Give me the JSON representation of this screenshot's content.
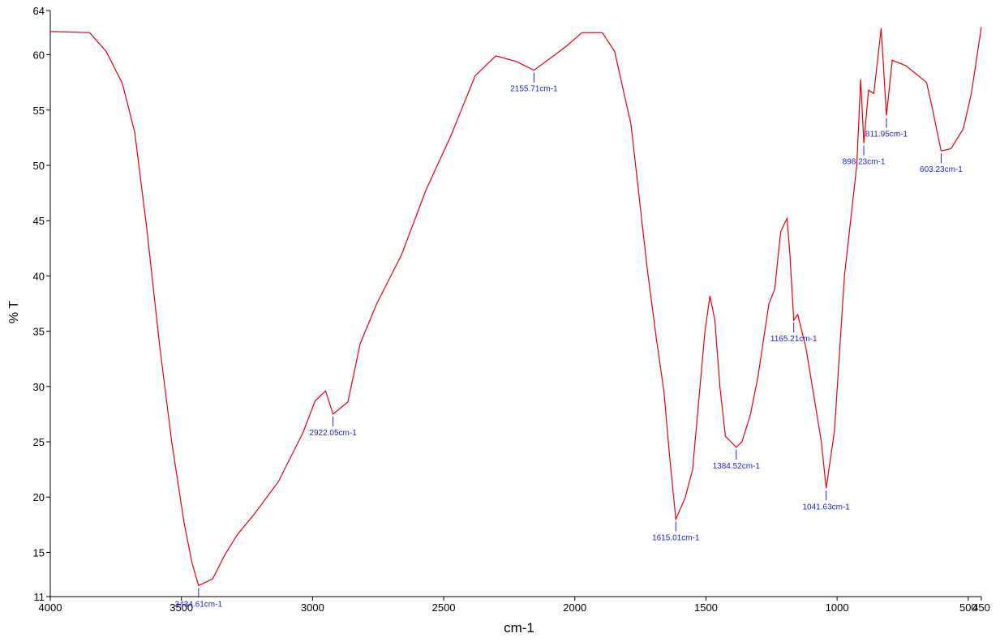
{
  "chart_data": {
    "type": "line",
    "xlabel": "cm-1",
    "ylabel": "% T",
    "x": [
      4000,
      3850,
      3787,
      3725,
      3678,
      3631,
      3584,
      3537,
      3490,
      3459,
      3434.61,
      3381,
      3334,
      3287,
      3224,
      3130,
      3037,
      2990,
      2950,
      2922.05,
      2865,
      2818,
      2755,
      2661,
      2567,
      2474,
      2380,
      2301,
      2223,
      2155.71,
      2036,
      1973,
      1895,
      1848,
      1786,
      1723,
      1690,
      1660,
      1640,
      1615.01,
      1580,
      1551,
      1504,
      1485,
      1466,
      1447,
      1426,
      1405,
      1384.52,
      1363,
      1330,
      1301,
      1260,
      1238,
      1215,
      1191,
      1180,
      1165.21,
      1150,
      1119,
      1091,
      1060,
      1041.63,
      1010,
      972,
      925,
      910,
      898.23,
      880,
      860,
      832,
      811.95,
      790,
      737,
      659,
      640,
      603.23,
      566,
      519,
      488,
      450
    ],
    "values": [
      62.1,
      62.0,
      60.3,
      57.4,
      53.0,
      44.1,
      33.9,
      25.0,
      17.7,
      14.0,
      12.0,
      12.6,
      14.8,
      16.6,
      18.4,
      21.4,
      25.8,
      28.7,
      29.6,
      27.5,
      28.6,
      33.9,
      37.5,
      41.9,
      47.8,
      52.6,
      58.1,
      59.9,
      59.4,
      58.6,
      60.7,
      62.0,
      62.0,
      60.3,
      53.7,
      40.5,
      34.5,
      29.5,
      24.0,
      18.0,
      19.9,
      22.5,
      35.0,
      38.2,
      36.0,
      30.0,
      25.5,
      25.0,
      24.5,
      25.0,
      27.5,
      31.0,
      37.5,
      38.8,
      44.0,
      45.2,
      42.0,
      36.0,
      36.5,
      33.5,
      29.5,
      25.0,
      20.8,
      26.0,
      40.0,
      50.0,
      57.8,
      52.0,
      56.8,
      56.5,
      62.4,
      54.5,
      59.5,
      59.0,
      57.5,
      55.5,
      51.3,
      51.5,
      53.3,
      56.5,
      62.5
    ],
    "color": "#e8000b",
    "xlim": [
      4000,
      450
    ],
    "xticks": [
      4000,
      3500,
      3000,
      2500,
      2000,
      1500,
      1000,
      500,
      450
    ],
    "ylim": [
      11,
      64
    ],
    "yticks": [
      11,
      15,
      20,
      25,
      30,
      35,
      40,
      45,
      50,
      55,
      60,
      64
    ],
    "annotations": [
      {
        "label": "3434.61cm-1",
        "x": 3434.61,
        "y": 12.0
      },
      {
        "label": "2922.05cm-1",
        "x": 2922.05,
        "y": 27.5
      },
      {
        "label": "2155.71cm-1",
        "x": 2155.71,
        "y": 58.6
      },
      {
        "label": "1615.01cm-1",
        "x": 1615.01,
        "y": 18.0
      },
      {
        "label": "1384.52cm-1",
        "x": 1384.52,
        "y": 24.5
      },
      {
        "label": "1165.21cm-1",
        "x": 1165.21,
        "y": 36.0
      },
      {
        "label": "1041.63cm-1",
        "x": 1041.63,
        "y": 20.8
      },
      {
        "label": "898.23cm-1",
        "x": 898.23,
        "y": 52.0
      },
      {
        "label": "811.95cm-1",
        "x": 811.95,
        "y": 54.5
      },
      {
        "label": "603.23cm-1",
        "x": 603.23,
        "y": 51.3
      }
    ]
  }
}
